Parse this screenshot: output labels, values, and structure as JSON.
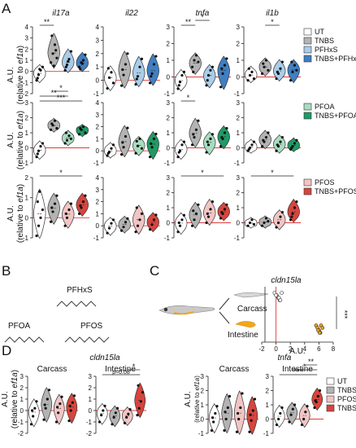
{
  "panel_labels": {
    "A": "A",
    "B": "B",
    "C": "C",
    "D": "D"
  },
  "ylabel_line1": "A.U.",
  "ylabel_line2_prefix": "(relative to ",
  "ylabel_line2_gene": "ef1a",
  "ylabel_line2_suffix": ")",
  "colors": {
    "UT": "#ffffff",
    "TNBS": "#b3b3b3",
    "PFHxS": "#a9cdea",
    "TNBS_PFHxS": "#3f7fc2",
    "PFOA": "#a8dcc0",
    "TNBS_PFOA": "#1f9a66",
    "PFOS": "#f2c5c5",
    "TNBS_PFOS": "#d6453d",
    "zero_line": "#e03a3a",
    "fish_body": "#c9c9c9",
    "intestine": "#f2a61c"
  },
  "legends": {
    "A1": [
      "UT",
      "TNBS",
      "PFHxS",
      "TNBS+PFHxS"
    ],
    "A2": [
      "PFOA",
      "TNBS+PFOA"
    ],
    "A3": [
      "PFOS",
      "TNBS+PFOS"
    ],
    "D": [
      "UT",
      "TNBS",
      "PFOS",
      "TNBS+PFOS"
    ]
  },
  "panel_B": {
    "PFHxS": "PFHxS",
    "PFOA": "PFOA",
    "PFOS": "PFOS"
  },
  "panel_C": {
    "gene": "cldn15la",
    "carcass": "Carcass",
    "intestine": "Intestine",
    "xlabel": "A.U.",
    "sig": "***"
  },
  "panel_D": {
    "carcass": "Carcass",
    "intestine": "Intestine",
    "tnfa_p": "p=0.08"
  },
  "chart_data": [
    {
      "type": "violin",
      "panel": "A",
      "gene": "il17a",
      "row": "PFHxS",
      "categories": [
        "UT",
        "TNBS",
        "PFHxS",
        "TNBS+PFHxS"
      ],
      "ylim": [
        -2,
        4
      ],
      "yticks": [
        -2,
        -1,
        0,
        1,
        2,
        3,
        4
      ],
      "series": [
        {
          "values": [
            -0.8,
            -0.3,
            0.1,
            0.4,
            -0.6,
            0.2
          ]
        },
        {
          "values": [
            0.8,
            1.6,
            2.4,
            1.2,
            3.2,
            0.5,
            1.9
          ]
        },
        {
          "values": [
            0.1,
            0.6,
            1.1,
            1.8,
            0.4,
            0.9
          ]
        },
        {
          "values": [
            0.4,
            0.8,
            1.0,
            1.5,
            0.2,
            0.7
          ]
        }
      ],
      "sig": [
        {
          "from": 0,
          "to": 1,
          "label": "**"
        }
      ]
    },
    {
      "type": "violin",
      "panel": "A",
      "gene": "il22",
      "row": "PFHxS",
      "categories": [
        "UT",
        "TNBS",
        "PFHxS",
        "TNBS+PFHxS"
      ],
      "ylim": [
        -1,
        4
      ],
      "yticks": [
        -1,
        0,
        1,
        2,
        3,
        4
      ],
      "series": [
        {
          "values": [
            -0.6,
            0.2,
            0.6,
            -0.2,
            0.9
          ]
        },
        {
          "values": [
            -0.4,
            0.4,
            1.2,
            2.0,
            0.8
          ]
        },
        {
          "values": [
            -0.3,
            0.3,
            1.0,
            1.6,
            0.1
          ]
        },
        {
          "values": [
            -0.2,
            0.5,
            1.2,
            1.8,
            0.3
          ]
        }
      ],
      "sig": []
    },
    {
      "type": "violin",
      "panel": "A",
      "gene": "tnfa",
      "row": "PFHxS",
      "categories": [
        "UT",
        "TNBS",
        "PFHxS",
        "TNBS+PFHxS"
      ],
      "ylim": [
        -1,
        3
      ],
      "yticks": [
        -1,
        0,
        1,
        2,
        3
      ],
      "series": [
        {
          "values": [
            -0.7,
            -0.3,
            0.1,
            0.3,
            -0.5
          ]
        },
        {
          "values": [
            0.6,
            1.0,
            1.3,
            0.9,
            0.3
          ]
        },
        {
          "values": [
            -0.5,
            0.1,
            0.4,
            0.6,
            -0.2
          ]
        },
        {
          "values": [
            -0.6,
            0.2,
            0.7,
            1.1,
            0.5
          ]
        }
      ],
      "sig": [
        {
          "from": 0,
          "to": 1,
          "label": "**"
        },
        {
          "from": 1,
          "to": 2,
          "label": "*"
        }
      ]
    },
    {
      "type": "violin",
      "panel": "A",
      "gene": "il1b",
      "row": "PFHxS",
      "categories": [
        "UT",
        "TNBS",
        "PFHxS",
        "TNBS+PFHxS"
      ],
      "ylim": [
        -1,
        3
      ],
      "yticks": [
        -1,
        0,
        1,
        2,
        3
      ],
      "series": [
        {
          "values": [
            -0.2,
            0.1,
            0.3,
            -0.1,
            0.5
          ]
        },
        {
          "values": [
            0.2,
            0.6,
            1.0,
            0.4,
            0.8
          ]
        },
        {
          "values": [
            -0.1,
            0.2,
            0.5,
            0.9,
            0.3
          ]
        },
        {
          "values": [
            -0.2,
            0.3,
            0.7,
            0.4,
            0.9
          ]
        }
      ],
      "sig": [
        {
          "from": 1,
          "to": 2,
          "label": "*"
        }
      ]
    },
    {
      "type": "violin",
      "panel": "A",
      "gene": "il17a",
      "row": "PFOA",
      "categories": [
        "UT",
        "TNBS",
        "PFOA",
        "TNBS+PFOA"
      ],
      "ylim": [
        -1,
        3
      ],
      "yticks": [
        -1,
        0,
        1,
        2,
        3
      ],
      "series": [
        {
          "values": [
            -0.6,
            -0.2,
            0.1,
            0.3,
            -0.4
          ]
        },
        {
          "values": [
            1.2,
            1.5,
            1.8,
            1.3,
            1.6
          ]
        },
        {
          "values": [
            0.3,
            0.5,
            0.8,
            0.6,
            1.0
          ]
        },
        {
          "values": [
            0.9,
            1.2,
            1.4,
            1.0,
            1.3
          ]
        }
      ],
      "sig": [
        {
          "from": 0,
          "to": 3,
          "label": "***"
        },
        {
          "from": 0,
          "to": 2,
          "label": "**"
        },
        {
          "from": 1,
          "to": 2,
          "label": "*"
        }
      ]
    },
    {
      "type": "violin",
      "panel": "A",
      "gene": "il22",
      "row": "PFOA",
      "categories": [
        "UT",
        "TNBS",
        "PFOA",
        "TNBS+PFOA"
      ],
      "ylim": [
        -1,
        4
      ],
      "yticks": [
        -1,
        0,
        1,
        2,
        3,
        4
      ],
      "series": [
        {
          "values": [
            -0.4,
            -0.1,
            0.2,
            0.5,
            -0.2
          ]
        },
        {
          "values": [
            -0.3,
            0.3,
            1.2,
            1.9,
            0.7
          ]
        },
        {
          "values": [
            -0.2,
            0.4,
            1.0,
            0.2,
            0.8
          ]
        },
        {
          "values": [
            -0.5,
            0.3,
            1.0,
            1.4,
            0.6
          ]
        }
      ],
      "sig": []
    },
    {
      "type": "violin",
      "panel": "A",
      "gene": "tnfa",
      "row": "PFOA",
      "categories": [
        "UT",
        "TNBS",
        "PFOA",
        "TNBS+PFOA"
      ],
      "ylim": [
        -1,
        3
      ],
      "yticks": [
        -1,
        0,
        1,
        2,
        3
      ],
      "series": [
        {
          "values": [
            -0.6,
            -0.2,
            0.2,
            0.4,
            -0.3
          ]
        },
        {
          "values": [
            0.2,
            0.7,
            1.2,
            1.8,
            0.9
          ]
        },
        {
          "values": [
            -0.3,
            0.2,
            0.6,
            0.9,
            0.4
          ]
        },
        {
          "values": [
            0.1,
            0.6,
            1.0,
            1.3,
            0.7
          ]
        }
      ],
      "sig": [
        {
          "from": 0,
          "to": 1,
          "label": "*"
        }
      ]
    },
    {
      "type": "violin",
      "panel": "A",
      "gene": "il1b",
      "row": "PFOA",
      "categories": [
        "UT",
        "TNBS",
        "PFOA",
        "TNBS+PFOA"
      ],
      "ylim": [
        -1,
        3
      ],
      "yticks": [
        -1,
        0,
        1,
        2,
        3
      ],
      "series": [
        {
          "values": [
            -0.2,
            0.0,
            0.2,
            0.4,
            -0.1
          ]
        },
        {
          "values": [
            0.1,
            0.4,
            0.7,
            1.0,
            0.5
          ]
        },
        {
          "values": [
            -0.2,
            0.1,
            0.4,
            0.7,
            0.2
          ]
        },
        {
          "values": [
            -0.1,
            0.1,
            0.3,
            0.5,
            0.0
          ]
        }
      ],
      "sig": []
    },
    {
      "type": "violin",
      "panel": "A",
      "gene": "il17a",
      "row": "PFOS",
      "categories": [
        "UT",
        "TNBS",
        "PFOS",
        "TNBS+PFOS"
      ],
      "ylim": [
        -1,
        2
      ],
      "yticks": [
        -1,
        0,
        1,
        2
      ],
      "series": [
        {
          "values": [
            -0.9,
            -0.4,
            0.0,
            0.4,
            0.8,
            1.3
          ]
        },
        {
          "values": [
            -0.2,
            0.3,
            0.7,
            1.1,
            0.5
          ]
        },
        {
          "values": [
            -0.4,
            0.0,
            0.4,
            0.7,
            0.2
          ]
        },
        {
          "values": [
            0.2,
            0.5,
            0.8,
            1.1,
            0.6
          ]
        }
      ],
      "sig": [
        {
          "from": 0,
          "to": 3,
          "label": "*"
        }
      ]
    },
    {
      "type": "violin",
      "panel": "A",
      "gene": "il22",
      "row": "PFOS",
      "categories": [
        "UT",
        "TNBS",
        "PFOS",
        "TNBS+PFOS"
      ],
      "ylim": [
        -1,
        4
      ],
      "yticks": [
        -1,
        0,
        1,
        2,
        3,
        4
      ],
      "series": [
        {
          "values": [
            -0.6,
            -0.2,
            0.2,
            0.5
          ]
        },
        {
          "values": [
            -0.4,
            -0.1,
            0.3,
            0.6
          ]
        },
        {
          "values": [
            -0.5,
            0.0,
            0.5,
            1.0,
            1.5
          ]
        },
        {
          "values": [
            -0.3,
            0.1,
            0.5,
            0.9
          ]
        }
      ],
      "sig": []
    },
    {
      "type": "violin",
      "panel": "A",
      "gene": "tnfa",
      "row": "PFOS",
      "categories": [
        "UT",
        "TNBS",
        "PFOS",
        "TNBS+PFOS"
      ],
      "ylim": [
        -1,
        3
      ],
      "yticks": [
        -1,
        0,
        1,
        2,
        3
      ],
      "series": [
        {
          "values": [
            -0.6,
            -0.2,
            0.2,
            0.5,
            0.0
          ]
        },
        {
          "values": [
            -0.2,
            0.2,
            0.6,
            1.2,
            0.8
          ]
        },
        {
          "values": [
            0.0,
            0.4,
            0.9,
            1.4,
            0.6
          ]
        },
        {
          "values": [
            0.3,
            0.6,
            0.9,
            1.2,
            0.7
          ]
        }
      ],
      "sig": [
        {
          "from": 0,
          "to": 3,
          "label": "*"
        }
      ]
    },
    {
      "type": "violin",
      "panel": "A",
      "gene": "il1b",
      "row": "PFOS",
      "categories": [
        "UT",
        "TNBS",
        "PFOS",
        "TNBS+PFOS"
      ],
      "ylim": [
        -1,
        3
      ],
      "yticks": [
        -1,
        0,
        1,
        2,
        3
      ],
      "series": [
        {
          "values": [
            -0.2,
            0.0,
            0.2,
            -0.1
          ]
        },
        {
          "values": [
            -0.2,
            0.0,
            0.3,
            0.1
          ]
        },
        {
          "values": [
            -0.3,
            0.0,
            0.4,
            0.7
          ]
        },
        {
          "values": [
            0.2,
            0.6,
            1.0,
            1.4,
            0.4
          ]
        }
      ],
      "sig": [
        {
          "from": 0,
          "to": 3,
          "label": "*"
        }
      ]
    },
    {
      "type": "strip",
      "panel": "C",
      "gene": "cldn15la",
      "xlim": [
        -2,
        8
      ],
      "xticks": [
        -2,
        0,
        2,
        4,
        6,
        8
      ],
      "categories": [
        "Carcass",
        "Intestine"
      ],
      "series": [
        {
          "name": "Carcass",
          "values": [
            -0.2,
            0.1,
            0.3,
            0.5,
            0.8,
            0.0,
            0.4,
            0.6
          ]
        },
        {
          "name": "Intestine",
          "values": [
            5.6,
            5.8,
            6.0,
            6.2,
            6.3,
            6.5,
            5.9,
            6.1
          ]
        }
      ],
      "sig": "***"
    },
    {
      "type": "violin",
      "panel": "D",
      "gene": "tnfa",
      "section": "Carcass",
      "categories": [
        "UT",
        "TNBS",
        "PFOS",
        "TNBS+PFOS"
      ],
      "ylim": [
        -2,
        3
      ],
      "yticks": [
        -2,
        -1,
        0,
        1,
        2,
        3
      ],
      "series": [
        {
          "values": [
            -1.2,
            -0.5,
            0.2,
            0.8,
            0.0
          ]
        },
        {
          "values": [
            -0.8,
            0.2,
            1.0,
            1.8,
            0.5
          ]
        },
        {
          "values": [
            -1.0,
            -0.2,
            0.6,
            1.2,
            0.3
          ]
        },
        {
          "values": [
            -0.9,
            0.0,
            0.7,
            1.3,
            0.4
          ]
        }
      ],
      "sig": []
    },
    {
      "type": "violin",
      "panel": "D",
      "gene": "tnfa",
      "section": "Intestine",
      "categories": [
        "UT",
        "TNBS",
        "PFOS",
        "TNBS+PFOS"
      ],
      "ylim": [
        -2,
        3
      ],
      "yticks": [
        -2,
        -1,
        0,
        1,
        2,
        3
      ],
      "series": [
        {
          "values": [
            -1.0,
            -0.4,
            0.0,
            0.4
          ]
        },
        {
          "values": [
            -1.2,
            -0.6,
            -0.2,
            0.2
          ]
        },
        {
          "values": [
            -1.1,
            -0.6,
            -0.3,
            0.1
          ]
        },
        {
          "values": [
            -0.4,
            0.2,
            0.8,
            1.6,
            2.2
          ]
        }
      ],
      "sig": [
        {
          "from": 0,
          "to": 3,
          "label": "p=0.08"
        },
        {
          "from": 2,
          "to": 3,
          "label": "*"
        }
      ]
    },
    {
      "type": "violin",
      "panel": "D",
      "gene": "il1b",
      "section": "Carcass",
      "categories": [
        "UT",
        "TNBS",
        "PFOS",
        "TNBS+PFOS"
      ],
      "ylim": [
        -1,
        3
      ],
      "yticks": [
        -1,
        0,
        1,
        2,
        3
      ],
      "series": [
        {
          "values": [
            -0.8,
            -0.2,
            0.4,
            0.9,
            0.1
          ]
        },
        {
          "values": [
            -0.8,
            0.0,
            0.8,
            1.6,
            0.5
          ]
        },
        {
          "values": [
            -0.9,
            0.0,
            0.8,
            1.8,
            0.4
          ]
        },
        {
          "values": [
            -0.9,
            -0.1,
            0.6,
            1.4,
            0.3
          ]
        }
      ],
      "sig": []
    },
    {
      "type": "violin",
      "panel": "D",
      "gene": "il1b",
      "section": "Intestine",
      "categories": [
        "UT",
        "TNBS",
        "PFOS",
        "TNBS+PFOS"
      ],
      "ylim": [
        -1,
        3
      ],
      "yticks": [
        -1,
        0,
        1,
        2,
        3
      ],
      "series": [
        {
          "values": [
            -0.4,
            0.0,
            0.4,
            0.8
          ]
        },
        {
          "values": [
            -0.2,
            0.3,
            0.7,
            1.0
          ]
        },
        {
          "values": [
            -0.4,
            0.0,
            0.5,
            0.9
          ]
        },
        {
          "values": [
            0.8,
            1.2,
            1.6,
            2.0,
            1.3
          ]
        }
      ],
      "sig": [
        {
          "from": 0,
          "to": 3,
          "label": "***"
        },
        {
          "from": 1,
          "to": 3,
          "label": "*"
        },
        {
          "from": 2,
          "to": 3,
          "label": "**"
        }
      ]
    }
  ]
}
